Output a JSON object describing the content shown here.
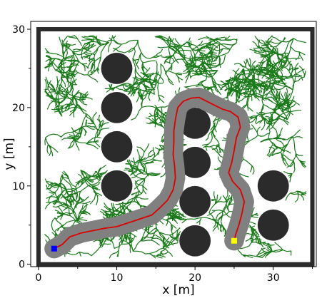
{
  "chart_data": {
    "type": "scatter",
    "title": "",
    "xlabel": "x [m]",
    "ylabel": "y [m]",
    "xlim": [
      -1,
      35.5
    ],
    "ylim": [
      -0.3,
      31
    ],
    "xticks": [
      "0",
      "10",
      "20",
      "30"
    ],
    "yticks": [
      "0",
      "10",
      "20",
      "30"
    ],
    "grid": false,
    "colors": {
      "wall": "#2b2b2b",
      "obstacle": "#2b2b2b",
      "tree": "#1a7a1a",
      "path": "#dd0000",
      "corridor": "#808080",
      "start": "#0000ff",
      "goal": "#ffff00"
    },
    "boundary": {
      "xmin": 0,
      "xmax": 35,
      "ymin": 0,
      "ymax": 30
    },
    "obstacles": [
      {
        "x": 10,
        "y": 25,
        "r": 2
      },
      {
        "x": 10,
        "y": 20,
        "r": 2
      },
      {
        "x": 10,
        "y": 15,
        "r": 2
      },
      {
        "x": 10,
        "y": 10,
        "r": 2
      },
      {
        "x": 20,
        "y": 18,
        "r": 2
      },
      {
        "x": 20,
        "y": 13,
        "r": 2
      },
      {
        "x": 20,
        "y": 8,
        "r": 2
      },
      {
        "x": 20,
        "y": 3,
        "r": 2
      },
      {
        "x": 30,
        "y": 10,
        "r": 2
      },
      {
        "x": 30,
        "y": 5,
        "r": 2
      }
    ],
    "start": {
      "x": 2,
      "y": 2
    },
    "goal": {
      "x": 25,
      "y": 3
    },
    "path": [
      [
        2,
        2
      ],
      [
        3,
        2.5
      ],
      [
        4,
        3.5
      ],
      [
        5.5,
        4
      ],
      [
        7,
        4.3
      ],
      [
        8.5,
        4.6
      ],
      [
        10,
        4.8
      ],
      [
        11.5,
        5.3
      ],
      [
        13,
        5.8
      ],
      [
        14.5,
        6.3
      ],
      [
        15.5,
        7.2
      ],
      [
        16.5,
        8.2
      ],
      [
        17.2,
        9.5
      ],
      [
        17.5,
        11
      ],
      [
        17.4,
        12.5
      ],
      [
        17.2,
        14
      ],
      [
        17.3,
        15.5
      ],
      [
        17.3,
        17
      ],
      [
        17.5,
        18.5
      ],
      [
        17.8,
        20
      ],
      [
        18.5,
        20.8
      ],
      [
        19.5,
        21.2
      ],
      [
        20.5,
        21.3
      ],
      [
        21.5,
        20.8
      ],
      [
        22.5,
        20.3
      ],
      [
        23.5,
        19.8
      ],
      [
        24.5,
        19.5
      ],
      [
        25.5,
        18.8
      ],
      [
        25.8,
        17.5
      ],
      [
        25.3,
        16.2
      ],
      [
        25,
        14.5
      ],
      [
        24.7,
        13
      ],
      [
        24.3,
        11.7
      ],
      [
        24.8,
        10.6
      ],
      [
        25.8,
        9.5
      ],
      [
        26.3,
        8
      ],
      [
        26,
        6.5
      ],
      [
        25.6,
        5
      ],
      [
        25.2,
        3.8
      ],
      [
        25,
        3
      ]
    ],
    "corridor_width": 2.5
  }
}
